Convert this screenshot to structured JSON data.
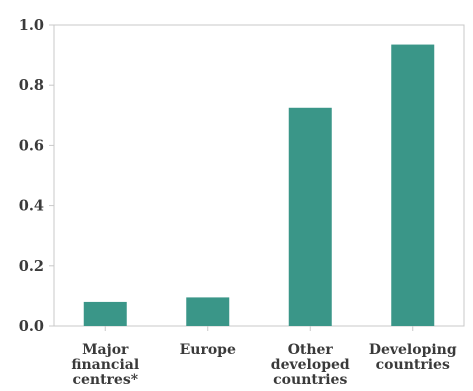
{
  "chart_data": {
    "type": "bar",
    "categories": [
      [
        "Major",
        "financial",
        "centres*"
      ],
      [
        "Europe"
      ],
      [
        "Other",
        "developed",
        "countries"
      ],
      [
        "Developing",
        "countries"
      ]
    ],
    "values": [
      0.08,
      0.095,
      0.725,
      0.935
    ],
    "ylim": [
      0,
      1.0
    ],
    "yticks": [
      "0.0",
      "0.2",
      "0.4",
      "0.6",
      "0.8",
      "1.0"
    ],
    "title": "",
    "xlabel": "",
    "ylabel": "",
    "grid": false,
    "legend": "none",
    "colors": {
      "bar": "#3a9688",
      "axis": "#c8c8c8",
      "text": "#3a3a3a"
    }
  }
}
